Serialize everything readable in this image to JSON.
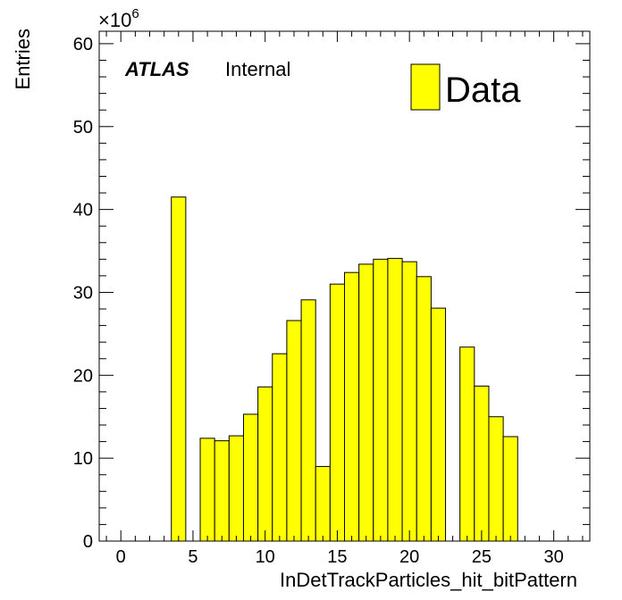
{
  "chart_data": {
    "type": "bar",
    "experiment_label": "ATLAS",
    "status_label": "Internal",
    "xlabel": "InDetTrackParticles_hit_bitPattern",
    "ylabel": "Entries",
    "y_multiplier_label": "×10",
    "y_multiplier_exponent": "6",
    "xlim": [
      -1.5,
      32.5
    ],
    "ylim": [
      0,
      61.5
    ],
    "x_ticks": [
      0,
      5,
      10,
      15,
      20,
      25,
      30
    ],
    "y_ticks": [
      0,
      10,
      20,
      30,
      40,
      50,
      60
    ],
    "bin_width": 1,
    "bin_centers": [
      0,
      1,
      2,
      3,
      4,
      5,
      6,
      7,
      8,
      9,
      10,
      11,
      12,
      13,
      14,
      15,
      16,
      17,
      18,
      19,
      20,
      21,
      22,
      23,
      24,
      25,
      26,
      27,
      28,
      29,
      30,
      31
    ],
    "series": [
      {
        "name": "Data",
        "color": "#ffff00",
        "values": [
          0,
          0,
          0,
          0,
          41.5,
          0,
          12.4,
          12.1,
          12.7,
          15.3,
          18.6,
          22.6,
          26.6,
          29.1,
          9.0,
          31.0,
          32.4,
          33.4,
          34.0,
          34.1,
          33.7,
          31.9,
          28.1,
          0,
          23.4,
          18.7,
          15.0,
          12.6,
          0,
          0,
          0,
          0
        ]
      }
    ],
    "legend": {
      "position": "top-right",
      "entries": [
        "Data"
      ]
    },
    "grid": false
  }
}
